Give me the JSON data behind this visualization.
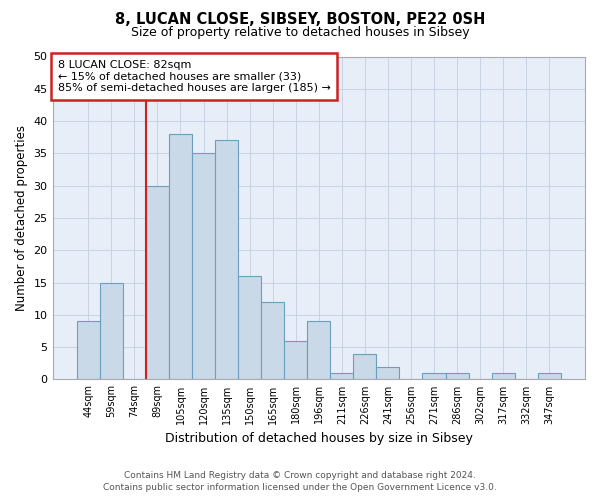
{
  "title": "8, LUCAN CLOSE, SIBSEY, BOSTON, PE22 0SH",
  "subtitle": "Size of property relative to detached houses in Sibsey",
  "xlabel": "Distribution of detached houses by size in Sibsey",
  "ylabel": "Number of detached properties",
  "categories": [
    "44sqm",
    "59sqm",
    "74sqm",
    "89sqm",
    "105sqm",
    "120sqm",
    "135sqm",
    "150sqm",
    "165sqm",
    "180sqm",
    "196sqm",
    "211sqm",
    "226sqm",
    "241sqm",
    "256sqm",
    "271sqm",
    "286sqm",
    "302sqm",
    "317sqm",
    "332sqm",
    "347sqm"
  ],
  "values": [
    9,
    15,
    0,
    30,
    38,
    35,
    37,
    16,
    12,
    6,
    9,
    1,
    4,
    2,
    0,
    1,
    1,
    0,
    1,
    0,
    1
  ],
  "bar_color": "#c9d9e8",
  "bar_edge_color": "#6a9fc0",
  "grid_color": "#c8d4e4",
  "background_color": "#e8eef8",
  "annotation_line1": "8 LUCAN CLOSE: 82sqm",
  "annotation_line2": "← 15% of detached houses are smaller (33)",
  "annotation_line3": "85% of semi-detached houses are larger (185) →",
  "vline_color": "#cc2222",
  "box_edge_color": "#cc2222",
  "ylim_max": 50,
  "yticks": [
    0,
    5,
    10,
    15,
    20,
    25,
    30,
    35,
    40,
    45,
    50
  ],
  "footer_line1": "Contains HM Land Registry data © Crown copyright and database right 2024.",
  "footer_line2": "Contains public sector information licensed under the Open Government Licence v3.0."
}
